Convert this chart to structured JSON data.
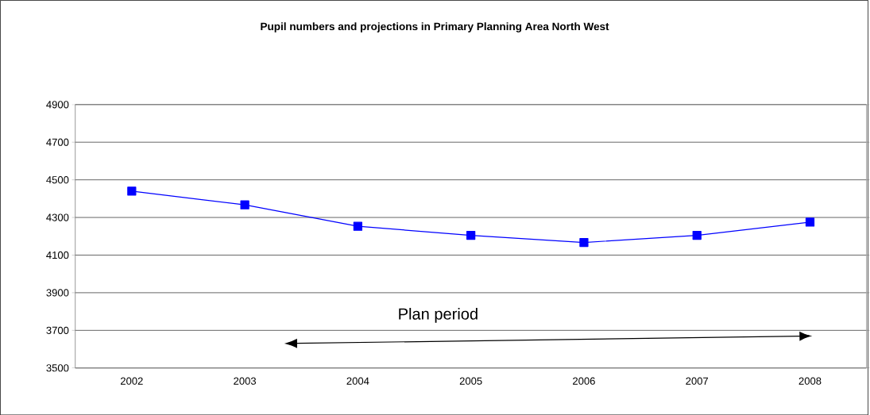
{
  "chart_data": {
    "type": "line",
    "title": "Pupil numbers and projections in Primary Planning Area North West",
    "categories": [
      "2002",
      "2003",
      "2004",
      "2005",
      "2006",
      "2007",
      "2008"
    ],
    "series": [
      {
        "color": "#0000ff",
        "values": [
          4440,
          4367,
          4253,
          4205,
          4167,
          4205,
          4275
        ]
      }
    ],
    "ylim": [
      3500,
      4900
    ],
    "yticks": [
      3500,
      3700,
      3900,
      4100,
      4300,
      4500,
      4700,
      4900
    ],
    "grid": "y",
    "marker": "square",
    "line_style": "solid",
    "annotations": [
      "Plan period"
    ]
  }
}
